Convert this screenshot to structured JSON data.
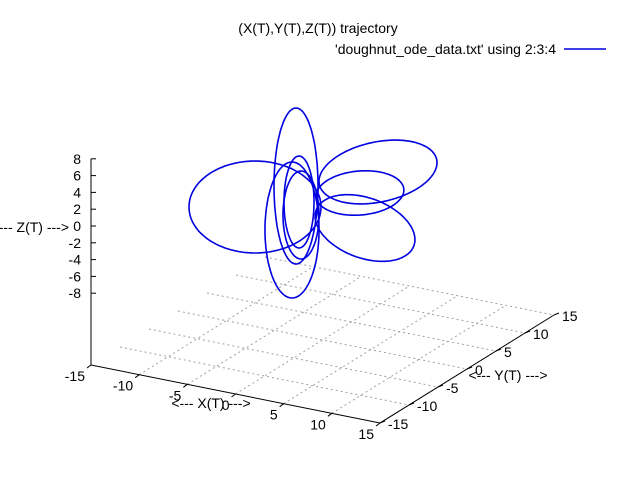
{
  "chart_data": {
    "type": "line",
    "title": "(X(T),Y(T),Z(T)) trajectory",
    "xlabel": "<--- X(T) --->",
    "ylabel": "<--- Y(T) --->",
    "zlabel": "<--- Z(T) --->",
    "xlim": [
      -15,
      15
    ],
    "ylim": [
      -15,
      15
    ],
    "zlim": [
      -8,
      8
    ],
    "x_ticks": [
      "-15",
      "-10",
      "-5",
      "0",
      "5",
      "10",
      "15"
    ],
    "y_ticks": [
      "-15",
      "-10",
      "-5",
      "0",
      "5",
      "10",
      "15"
    ],
    "z_ticks": [
      "8",
      "6",
      "4",
      "2",
      "0",
      "-2",
      "-4",
      "-6",
      "-8"
    ],
    "grid": true,
    "legend_position": "top-right",
    "series": [
      {
        "name": "'doughnut_ode_data.txt' using 2:3:4",
        "color": "#0000e0"
      }
    ]
  }
}
